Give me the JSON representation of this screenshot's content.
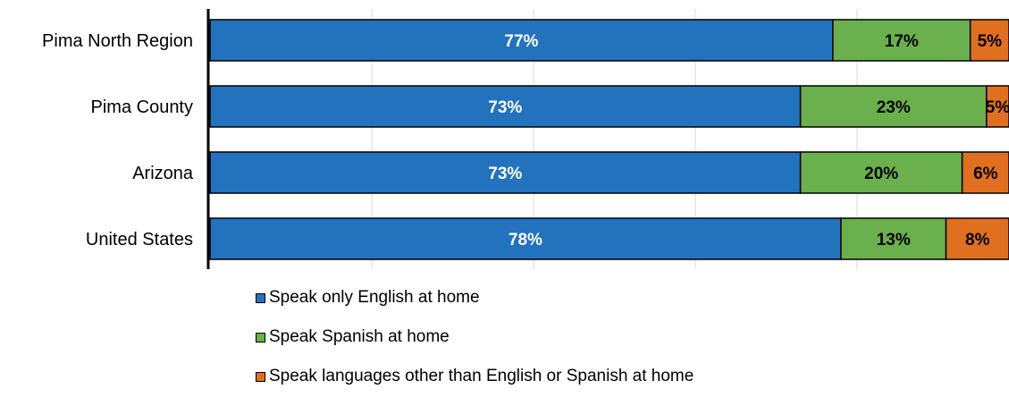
{
  "chart_data": {
    "type": "bar",
    "orientation": "horizontal",
    "stacked": true,
    "categories": [
      "Pima North Region",
      "Pima County",
      "Arizona",
      "United States"
    ],
    "series": [
      {
        "name": "Speak only English at home",
        "values": [
          77,
          73,
          73,
          78
        ],
        "labels": [
          "77%",
          "73%",
          "73%",
          "78%"
        ],
        "color": "#2272be"
      },
      {
        "name": "Speak Spanish at home",
        "values": [
          17,
          23,
          20,
          13
        ],
        "labels": [
          "17%",
          "23%",
          "20%",
          "13%"
        ],
        "color": "#6ab04c"
      },
      {
        "name": "Speak languages other than English or Spanish at home",
        "values": [
          5,
          5,
          6,
          8
        ],
        "labels": [
          "5%",
          "5%",
          "6%",
          "8%"
        ],
        "color": "#e07020"
      }
    ],
    "xlim": [
      0,
      100
    ],
    "grid": true,
    "legend_position": "bottom"
  }
}
